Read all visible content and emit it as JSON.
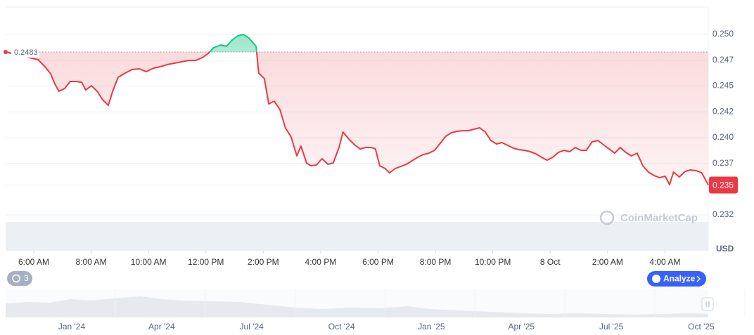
{
  "chart_data": {
    "type": "line",
    "x": [
      5.02,
      6.15,
      6.39,
      6.59,
      6.74,
      6.88,
      7.08,
      7.27,
      7.47,
      7.67,
      7.81,
      8.01,
      8.21,
      8.4,
      8.6,
      8.75,
      8.94,
      9.19,
      9.43,
      9.68,
      9.92,
      10.17,
      10.41,
      10.66,
      10.9,
      11.15,
      11.39,
      11.64,
      11.88,
      12.08,
      12.27,
      12.52,
      12.72,
      12.91,
      13.11,
      13.3,
      13.5,
      13.75,
      13.84,
      14.04,
      14.19,
      14.38,
      14.58,
      14.77,
      14.97,
      15.17,
      15.31,
      15.51,
      15.66,
      15.85,
      16.05,
      16.25,
      16.44,
      16.64,
      16.78,
      16.98,
      17.18,
      17.37,
      17.57,
      17.76,
      17.91,
      18.06,
      18.25,
      18.4,
      18.6,
      18.79,
      18.99,
      19.19,
      19.38,
      19.58,
      19.77,
      19.97,
      20.17,
      20.36,
      20.56,
      20.75,
      20.95,
      21.15,
      21.34,
      21.54,
      21.74,
      21.93,
      22.13,
      22.32,
      22.52,
      22.72,
      22.91,
      23.11,
      23.3,
      23.5,
      23.7,
      23.89,
      24.09,
      24.28,
      24.48,
      24.68,
      24.87,
      25.07,
      25.26,
      25.46,
      25.66,
      25.85,
      26.05,
      26.25,
      26.44,
      26.64,
      26.83,
      27.03,
      27.23,
      27.42,
      27.62,
      27.81,
      28.01,
      28.16,
      28.3,
      28.5,
      28.7,
      28.89,
      29.09,
      29.28,
      29.51
    ],
    "series": [
      {
        "color": "#ea3943",
        "up_color": "#16c784",
        "values": [
          0.2483,
          0.24755,
          0.24687,
          0.24619,
          0.24517,
          0.24449,
          0.24476,
          0.24544,
          0.24544,
          0.24537,
          0.24462,
          0.24503,
          0.24449,
          0.24367,
          0.24312,
          0.24449,
          0.24585,
          0.24626,
          0.2466,
          0.24667,
          0.24639,
          0.24673,
          0.24687,
          0.24708,
          0.24721,
          0.24735,
          0.24748,
          0.24748,
          0.24776,
          0.24816,
          0.24871,
          0.24898,
          0.24885,
          0.24946,
          0.24987,
          0.25,
          0.24966,
          0.24885,
          0.24626,
          0.24571,
          0.24326,
          0.24353,
          0.24272,
          0.24095,
          0.24006,
          0.23822,
          0.23918,
          0.23754,
          0.23727,
          0.23734,
          0.23795,
          0.23741,
          0.23754,
          0.23904,
          0.24054,
          0.23986,
          0.23931,
          0.2389,
          0.23904,
          0.23904,
          0.2389,
          0.23727,
          0.237,
          0.23659,
          0.237,
          0.2372,
          0.23741,
          0.23775,
          0.23809,
          0.23836,
          0.23849,
          0.23877,
          0.23945,
          0.24013,
          0.24047,
          0.24061,
          0.24067,
          0.24067,
          0.24081,
          0.24095,
          0.24054,
          0.23972,
          0.23938,
          0.23952,
          0.23924,
          0.23897,
          0.23883,
          0.23877,
          0.23863,
          0.23843,
          0.23809,
          0.23781,
          0.23809,
          0.23856,
          0.23877,
          0.23863,
          0.23904,
          0.23877,
          0.23877,
          0.23958,
          0.23972,
          0.23931,
          0.2389,
          0.23849,
          0.23904,
          0.23856,
          0.23822,
          0.23849,
          0.23727,
          0.23666,
          0.23632,
          0.23611,
          0.23625,
          0.23543,
          0.23666,
          0.23618,
          0.23672,
          0.23686,
          0.23679,
          0.23659,
          0.2354
        ]
      }
    ],
    "baseline": {
      "value": 0.2483,
      "label": "0.2483"
    },
    "current_price": {
      "value": 0.2354,
      "label": "0.235"
    },
    "xlim": [
      5.02,
      29.51
    ],
    "xticks": [
      {
        "value": 6,
        "label": "6:00 AM"
      },
      {
        "value": 8,
        "label": "8:00 AM"
      },
      {
        "value": 10,
        "label": "10:00 AM"
      },
      {
        "value": 12,
        "label": "12:00 PM"
      },
      {
        "value": 14,
        "label": "2:00 PM"
      },
      {
        "value": 16,
        "label": "4:00 PM"
      },
      {
        "value": 18,
        "label": "6:00 PM"
      },
      {
        "value": 20,
        "label": "8:00 PM"
      },
      {
        "value": 22,
        "label": "10:00 PM"
      },
      {
        "value": 24,
        "label": "8 Oct"
      },
      {
        "value": 26,
        "label": "2:00 AM"
      },
      {
        "value": 28,
        "label": "4:00 AM"
      }
    ],
    "ylim": [
      0.22903,
      0.25266
    ],
    "yticks": [
      {
        "value": 0.2325,
        "label": "0.232"
      },
      {
        "value": 0.2375,
        "label": "0.237"
      },
      {
        "value": 0.24,
        "label": "0.240"
      },
      {
        "value": 0.2425,
        "label": "0.242"
      },
      {
        "value": 0.245,
        "label": "0.245"
      },
      {
        "value": 0.2475,
        "label": "0.247"
      },
      {
        "value": 0.25,
        "label": "0.250"
      }
    ],
    "grid": true,
    "y_unit": "USD",
    "watermark": "CoinMarketCap",
    "history_count": "3",
    "analyze": "Analyze",
    "navigator_labels": [
      "Jan '24",
      "Apr '24",
      "Jul '24",
      "Oct '24",
      "Jan '25",
      "Apr '25",
      "Jul '25",
      "Oct '25"
    ]
  }
}
